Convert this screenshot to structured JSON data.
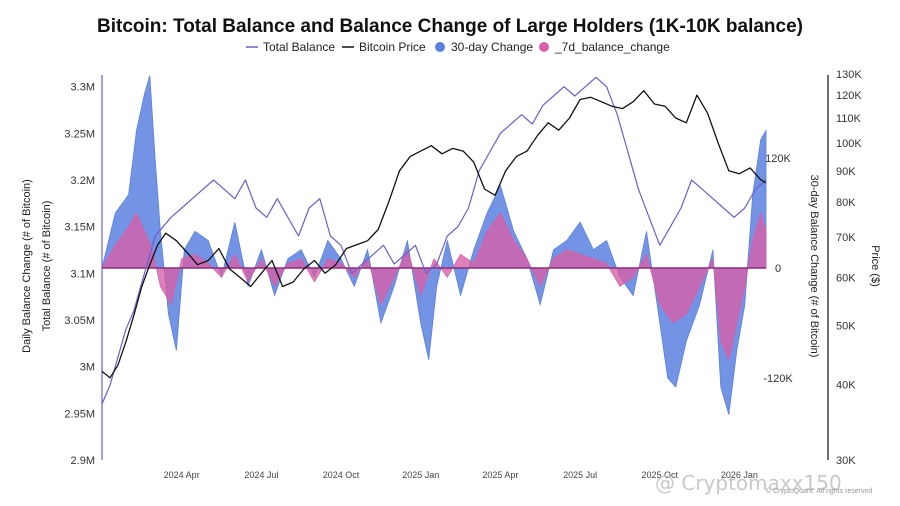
{
  "chart_data": {
    "type": "line",
    "title": "Bitcoin: Total Balance and Balance Change of Large Holders (1K-10K balance)",
    "legend": {
      "placement": "top-center",
      "entries": [
        {
          "key": "total_balance",
          "label": "Total Balance",
          "color": "#6a5fd0",
          "marker": "line"
        },
        {
          "key": "bitcoin_price",
          "label": "Bitcoin Price",
          "color": "#111111",
          "marker": "line"
        },
        {
          "key": "change_30d",
          "label": "30-day Change",
          "color": "#5b80e0",
          "marker": "dot"
        },
        {
          "key": "change_7d",
          "label": "_7d_balance_change",
          "color": "#d660a8",
          "marker": "dot"
        }
      ]
    },
    "x_axis": {
      "ticks": [
        "2024 Apr",
        "2024 Jul",
        "2024 Oct",
        "2025 Jan",
        "2025 Apr",
        "2025 Jul",
        "2025 Oct",
        "2026 Jan"
      ],
      "tick_positions": [
        3,
        6,
        9,
        12,
        15,
        18,
        21,
        24
      ],
      "range": [
        0,
        25
      ]
    },
    "y_left": {
      "label": "Daily Balance Change (# of Bitcoin)",
      "label_inner": "Total Balance (# of Bitcoin)",
      "ticks": [
        "3.3M",
        "3.25M",
        "3.2M",
        "3.15M",
        "3.1M",
        "3.05M",
        "3M",
        "2.95M",
        "2.9M"
      ],
      "tick_values": [
        3300000,
        3250000,
        3200000,
        3150000,
        3100000,
        3050000,
        3000000,
        2950000,
        2900000
      ],
      "range": [
        2900000,
        3320000
      ]
    },
    "y_change": {
      "label": "30-day Balance Change (# of Bitcoin)",
      "ticks": [
        "120K",
        "0",
        "-120K"
      ],
      "tick_values": [
        120000,
        0,
        -120000
      ],
      "range": [
        -230000,
        230000
      ]
    },
    "y_price": {
      "label": "Price ($)",
      "scale": "log",
      "ticks": [
        "130K",
        "120K",
        "110K",
        "100K",
        "90K",
        "80K",
        "70K",
        "60K",
        "50K",
        "40K",
        "30K"
      ],
      "tick_values": [
        130000,
        120000,
        110000,
        100000,
        90000,
        80000,
        70000,
        60000,
        50000,
        40000,
        30000
      ],
      "range": [
        30000,
        130000
      ]
    },
    "series": [
      {
        "name": "Total Balance",
        "key": "total_balance",
        "x": [
          0,
          0.3,
          0.6,
          0.9,
          1.2,
          1.5,
          1.8,
          2.0,
          2.3,
          2.6,
          3.0,
          3.4,
          3.8,
          4.2,
          4.6,
          5.0,
          5.4,
          5.8,
          6.2,
          6.6,
          7.0,
          7.4,
          7.8,
          8.2,
          8.6,
          9.0,
          9.4,
          9.8,
          10.2,
          10.6,
          11.0,
          11.4,
          11.8,
          12.2,
          12.6,
          13.0,
          13.4,
          13.8,
          14.2,
          14.6,
          15.0,
          15.4,
          15.8,
          16.2,
          16.6,
          17.0,
          17.4,
          17.8,
          18.2,
          18.6,
          19.0,
          19.4,
          19.8,
          20.2,
          20.6,
          21.0,
          21.4,
          21.8,
          22.2,
          22.6,
          23.0,
          23.4,
          23.8,
          24.2,
          24.6,
          25.0
        ],
        "values": [
          2960000,
          2980000,
          3010000,
          3040000,
          3060000,
          3090000,
          3120000,
          3140000,
          3150000,
          3160000,
          3170000,
          3180000,
          3190000,
          3200000,
          3190000,
          3180000,
          3200000,
          3170000,
          3160000,
          3180000,
          3160000,
          3140000,
          3170000,
          3180000,
          3140000,
          3130000,
          3100000,
          3110000,
          3120000,
          3130000,
          3110000,
          3120000,
          3130000,
          3100000,
          3110000,
          3140000,
          3150000,
          3170000,
          3210000,
          3230000,
          3250000,
          3260000,
          3270000,
          3260000,
          3280000,
          3290000,
          3300000,
          3290000,
          3300000,
          3310000,
          3300000,
          3270000,
          3230000,
          3190000,
          3160000,
          3130000,
          3150000,
          3170000,
          3200000,
          3190000,
          3180000,
          3170000,
          3160000,
          3170000,
          3190000,
          3200000
        ]
      },
      {
        "name": "Bitcoin Price",
        "key": "bitcoin_price",
        "x": [
          0,
          0.3,
          0.6,
          0.9,
          1.2,
          1.5,
          1.8,
          2.1,
          2.4,
          2.8,
          3.2,
          3.6,
          4.0,
          4.4,
          4.8,
          5.2,
          5.6,
          6.0,
          6.4,
          6.8,
          7.2,
          7.6,
          8.0,
          8.4,
          8.8,
          9.2,
          9.6,
          10.0,
          10.4,
          10.8,
          11.2,
          11.6,
          12.0,
          12.4,
          12.8,
          13.2,
          13.6,
          14.0,
          14.4,
          14.8,
          15.2,
          15.6,
          16.0,
          16.4,
          16.8,
          17.2,
          17.6,
          18.0,
          18.4,
          18.8,
          19.2,
          19.6,
          20.0,
          20.4,
          20.8,
          21.2,
          21.6,
          22.0,
          22.4,
          22.8,
          23.2,
          23.6,
          24.0,
          24.4,
          24.8,
          25.0
        ],
        "values": [
          42000,
          41000,
          43000,
          47000,
          52000,
          58000,
          63000,
          68000,
          71000,
          69000,
          66000,
          63000,
          64000,
          67000,
          62000,
          60000,
          58000,
          61000,
          64000,
          58000,
          59000,
          62000,
          64000,
          61000,
          63000,
          67000,
          68000,
          69000,
          72000,
          80000,
          90000,
          95000,
          97000,
          99000,
          96000,
          98000,
          97000,
          93000,
          84000,
          82000,
          90000,
          95000,
          97000,
          103000,
          108000,
          105000,
          110000,
          118000,
          119000,
          117000,
          115000,
          114000,
          117000,
          122000,
          116000,
          115000,
          110000,
          108000,
          120000,
          112000,
          100000,
          90000,
          89000,
          91000,
          87000,
          86000
        ]
      },
      {
        "name": "30-day Change",
        "key": "change_30d",
        "x": [
          0,
          0.5,
          1.0,
          1.3,
          1.6,
          1.8,
          2.0,
          2.2,
          2.5,
          2.8,
          3.1,
          3.5,
          4.0,
          4.5,
          5.0,
          5.5,
          6.0,
          6.5,
          7.0,
          7.5,
          8.0,
          8.5,
          9.0,
          9.5,
          10.0,
          10.5,
          11.0,
          11.5,
          12.0,
          12.3,
          12.6,
          13.0,
          13.5,
          14.0,
          14.5,
          15.0,
          15.5,
          16.0,
          16.5,
          17.0,
          17.5,
          18.0,
          18.5,
          19.0,
          19.5,
          20.0,
          20.5,
          21.0,
          21.3,
          21.6,
          22.0,
          22.5,
          23.0,
          23.3,
          23.6,
          23.9,
          24.2,
          24.5,
          24.8,
          25.0
        ],
        "values": [
          0,
          60000,
          80000,
          150000,
          190000,
          210000,
          120000,
          40000,
          -50000,
          -90000,
          20000,
          40000,
          30000,
          -10000,
          50000,
          -20000,
          20000,
          -30000,
          10000,
          20000,
          -10000,
          30000,
          10000,
          -20000,
          20000,
          -60000,
          -20000,
          30000,
          -60000,
          -100000,
          -20000,
          30000,
          -30000,
          20000,
          60000,
          90000,
          40000,
          10000,
          -40000,
          20000,
          30000,
          50000,
          20000,
          30000,
          -10000,
          -30000,
          40000,
          -60000,
          -120000,
          -130000,
          -80000,
          -40000,
          20000,
          -130000,
          -160000,
          -90000,
          -40000,
          80000,
          140000,
          150000
        ]
      },
      {
        "name": "_7d_balance_change",
        "key": "change_7d",
        "x": [
          0,
          0.5,
          1.0,
          1.3,
          1.6,
          1.9,
          2.2,
          2.6,
          3.0,
          3.5,
          4.0,
          4.5,
          5.0,
          5.5,
          6.0,
          6.5,
          7.0,
          7.5,
          8.0,
          8.5,
          9.0,
          9.5,
          10.0,
          10.5,
          11.0,
          11.5,
          12.0,
          12.5,
          13.0,
          13.5,
          14.0,
          14.5,
          15.0,
          15.5,
          16.0,
          16.5,
          17.0,
          17.5,
          18.0,
          18.5,
          19.0,
          19.5,
          20.0,
          20.5,
          21.0,
          21.5,
          22.0,
          22.5,
          23.0,
          23.3,
          23.6,
          23.9,
          24.2,
          24.5,
          24.8,
          25.0
        ],
        "values": [
          0,
          25000,
          45000,
          60000,
          40000,
          20000,
          -20000,
          -40000,
          10000,
          15000,
          5000,
          -10000,
          15000,
          -15000,
          10000,
          -20000,
          5000,
          10000,
          -15000,
          10000,
          5000,
          -10000,
          10000,
          -40000,
          -10000,
          20000,
          -30000,
          10000,
          -10000,
          15000,
          5000,
          40000,
          60000,
          30000,
          10000,
          -20000,
          10000,
          20000,
          15000,
          10000,
          5000,
          -20000,
          -10000,
          15000,
          -40000,
          -60000,
          -50000,
          -20000,
          10000,
          -80000,
          -100000,
          -60000,
          -20000,
          30000,
          60000,
          40000
        ]
      }
    ],
    "grid": false
  },
  "watermark": {
    "handle": "@ Cryptomaxx150",
    "copyright": "© CryptoQuant. All rights reserved"
  }
}
